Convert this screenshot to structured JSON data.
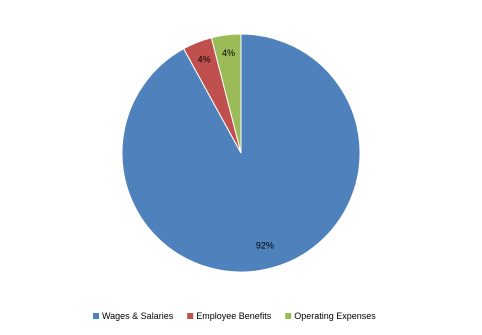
{
  "chart_data": {
    "type": "pie",
    "categories": [
      "Wages & Salaries",
      "Employee Benefits",
      "Operating Expenses"
    ],
    "values": [
      92,
      4,
      4
    ],
    "value_labels": [
      "92%",
      "4%",
      "4%"
    ],
    "colors": [
      "#4f81bd",
      "#c0504d",
      "#9bbb59"
    ],
    "legend": "bottom"
  }
}
